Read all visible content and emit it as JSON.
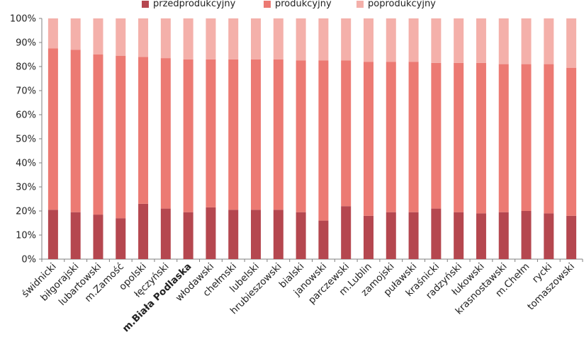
{
  "chart_data": {
    "type": "bar",
    "stacked": true,
    "percent": true,
    "categories": [
      "świdnicki",
      "biłgorajski",
      "lubartowski",
      "m.Zamość",
      "opolski",
      "łęczyński",
      "m.Biała Podlaska",
      "włodawski",
      "chełmski",
      "lubelski",
      "hrubieszowski",
      "bialski",
      "janowski",
      "parczewski",
      "m.Lublin",
      "zamojski",
      "puławski",
      "kraśnicki",
      "radzyński",
      "łukowski",
      "krasnostawski",
      "m.Chełm",
      "rycki",
      "tomaszowski"
    ],
    "highlight_category": "m.Biała Podlaska",
    "series": [
      {
        "name": "przedprodukcyjny",
        "color": "#b5474f",
        "values": [
          20.5,
          19.5,
          18.5,
          17,
          23,
          21,
          19.5,
          21.5,
          20.5,
          20.5,
          20.5,
          19.5,
          16,
          22,
          18,
          19.5,
          19.5,
          21,
          19.5,
          19,
          19.5,
          20,
          19,
          18
        ]
      },
      {
        "name": "produkcyjny",
        "color": "#ec7a73",
        "values": [
          67,
          67.5,
          66.5,
          67.5,
          61,
          62.5,
          63.5,
          61.5,
          62.5,
          62.5,
          62.5,
          63,
          66.5,
          60.5,
          64,
          62.5,
          62.5,
          60.5,
          62,
          62.5,
          61.5,
          61,
          62,
          61.5
        ]
      },
      {
        "name": "poprodukcyjny",
        "color": "#f4b0aa",
        "values": [
          12.5,
          13,
          15,
          15.5,
          16,
          16.5,
          17,
          17,
          17,
          17,
          17,
          17.5,
          17.5,
          17.5,
          18,
          18,
          18,
          18.5,
          18.5,
          18.5,
          19,
          19,
          19,
          20.5
        ]
      }
    ],
    "y_ticks": [
      "0%",
      "10%",
      "20%",
      "30%",
      "40%",
      "50%",
      "60%",
      "70%",
      "80%",
      "90%",
      "100%"
    ],
    "ylim": [
      0,
      100
    ],
    "grid": false,
    "legend_position": "top-center",
    "colors": {
      "axis": "#7f7f7f",
      "text": "#222222",
      "highlight_text": "#e0000f"
    }
  }
}
